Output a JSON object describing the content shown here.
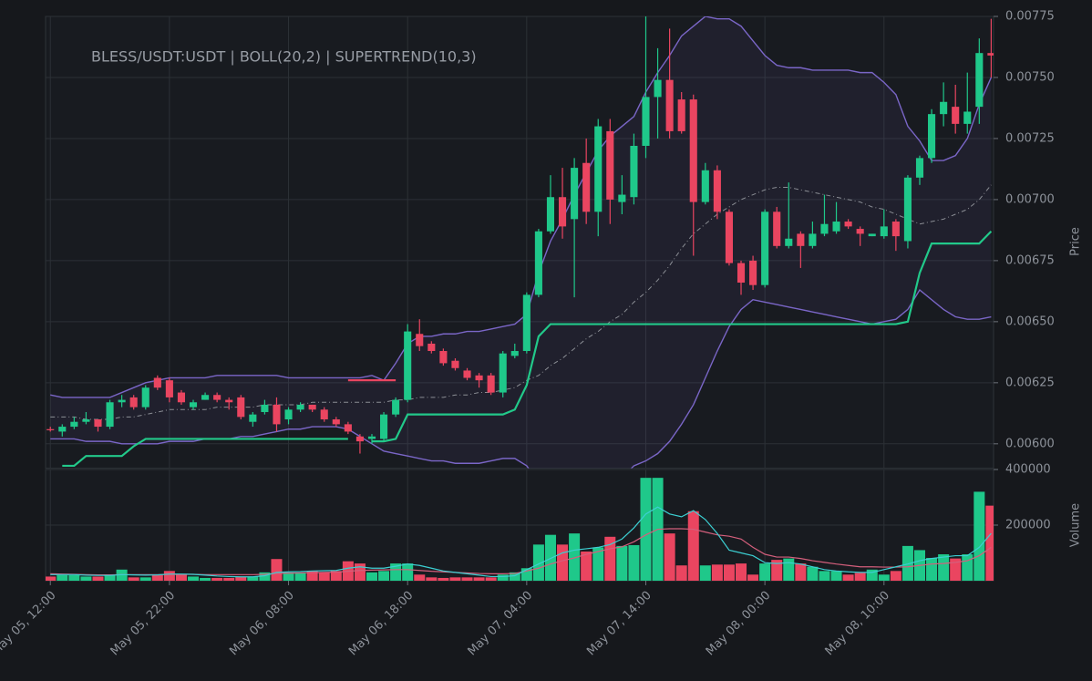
{
  "chart_data": [
    {
      "type": "candlestick",
      "title": "BLESS/USDT:USDT | BOLL(20,2) | SUPERTREND(10,3)",
      "ylabel": "Price",
      "up_color": "#1fc88a",
      "down_color": "#ea4560",
      "open": [
        0.00606,
        0.00605,
        0.00607,
        0.00609,
        0.0061,
        0.00607,
        0.00617,
        0.00619,
        0.00615,
        0.00627,
        0.00626,
        0.00621,
        0.00615,
        0.00618,
        0.0062,
        0.00618,
        0.00619,
        0.00609,
        0.00613,
        0.00616,
        0.0061,
        0.00614,
        0.00616,
        0.00614,
        0.0061,
        0.00608,
        0.00603,
        0.00602,
        0.00602,
        0.00612,
        0.00618,
        0.00645,
        0.00641,
        0.00638,
        0.00634,
        0.0063,
        0.00628,
        0.00628,
        0.00621,
        0.00636,
        0.00638,
        0.00661,
        0.00687,
        0.00701,
        0.00692,
        0.00715,
        0.00695,
        0.00728,
        0.00699,
        0.00701,
        0.00722,
        0.00742,
        0.00749,
        0.00741,
        0.00741,
        0.00699,
        0.00712,
        0.00695,
        0.00674,
        0.00675,
        0.00665,
        0.00695,
        0.00681,
        0.00686,
        0.00681,
        0.00686,
        0.00687,
        0.00691,
        0.00688,
        0.00685,
        0.00685,
        0.00691,
        0.00683,
        0.00709,
        0.00717,
        0.00735,
        0.00738,
        0.00731,
        0.00738,
        0.0076
      ],
      "high": [
        0.00607,
        0.00608,
        0.00611,
        0.00613,
        0.0061,
        0.00618,
        0.0062,
        0.0062,
        0.00624,
        0.00628,
        0.00627,
        0.00622,
        0.00618,
        0.00621,
        0.00621,
        0.00619,
        0.0062,
        0.00613,
        0.00618,
        0.00619,
        0.00615,
        0.00617,
        0.00616,
        0.00615,
        0.00611,
        0.00609,
        0.00604,
        0.00604,
        0.00613,
        0.00619,
        0.00649,
        0.00651,
        0.00642,
        0.00639,
        0.00635,
        0.00631,
        0.00629,
        0.00629,
        0.00638,
        0.00641,
        0.00662,
        0.00688,
        0.0071,
        0.00713,
        0.00717,
        0.00725,
        0.00733,
        0.00733,
        0.0071,
        0.00727,
        0.00775,
        0.00762,
        0.0077,
        0.00744,
        0.00743,
        0.00715,
        0.00714,
        0.00696,
        0.00675,
        0.00677,
        0.00696,
        0.00697,
        0.00707,
        0.00687,
        0.00691,
        0.00702,
        0.00699,
        0.00692,
        0.00689,
        0.00686,
        0.00696,
        0.00692,
        0.0071,
        0.00718,
        0.00737,
        0.00748,
        0.00747,
        0.00752,
        0.00766,
        0.00774
      ],
      "low": [
        0.00605,
        0.00603,
        0.00606,
        0.00608,
        0.00605,
        0.00606,
        0.00615,
        0.00614,
        0.00614,
        0.00622,
        0.00617,
        0.00616,
        0.00614,
        0.00618,
        0.00617,
        0.00614,
        0.0061,
        0.00607,
        0.00612,
        0.00605,
        0.00608,
        0.00613,
        0.00613,
        0.00609,
        0.00607,
        0.00604,
        0.00596,
        0.006,
        0.00601,
        0.00611,
        0.00617,
        0.00638,
        0.00637,
        0.00632,
        0.0063,
        0.00626,
        0.00623,
        0.0062,
        0.00619,
        0.00635,
        0.00637,
        0.0066,
        0.00686,
        0.00684,
        0.0066,
        0.0069,
        0.00685,
        0.0069,
        0.00694,
        0.00698,
        0.00717,
        0.00725,
        0.00725,
        0.00727,
        0.00677,
        0.00698,
        0.00692,
        0.00673,
        0.00661,
        0.00663,
        0.00664,
        0.0068,
        0.0068,
        0.00672,
        0.0068,
        0.00685,
        0.00686,
        0.00688,
        0.00681,
        0.00685,
        0.00684,
        0.00679,
        0.0068,
        0.00706,
        0.00715,
        0.0073,
        0.00727,
        0.00727,
        0.00731,
        0.0075
      ],
      "close": [
        0.00606,
        0.00607,
        0.00609,
        0.0061,
        0.00607,
        0.00617,
        0.00618,
        0.00615,
        0.00623,
        0.00623,
        0.00619,
        0.00617,
        0.00617,
        0.0062,
        0.00618,
        0.00617,
        0.00611,
        0.00612,
        0.00616,
        0.00608,
        0.00614,
        0.00616,
        0.00614,
        0.0061,
        0.00608,
        0.00605,
        0.00601,
        0.00603,
        0.00612,
        0.00618,
        0.00646,
        0.0064,
        0.00638,
        0.00633,
        0.00631,
        0.00627,
        0.00626,
        0.00621,
        0.00637,
        0.00638,
        0.00661,
        0.00687,
        0.00701,
        0.00689,
        0.00713,
        0.00695,
        0.0073,
        0.007,
        0.00702,
        0.00722,
        0.00742,
        0.00749,
        0.00728,
        0.00728,
        0.00699,
        0.00712,
        0.00695,
        0.00674,
        0.00666,
        0.00665,
        0.00695,
        0.00681,
        0.00684,
        0.00681,
        0.00686,
        0.0069,
        0.00691,
        0.00689,
        0.00686,
        0.00686,
        0.00689,
        0.00685,
        0.00709,
        0.00717,
        0.00735,
        0.0074,
        0.00731,
        0.00736,
        0.0076,
        0.00759
      ],
      "boll_upper": {
        "color": "#7a66c7",
        "values": [
          0.0062,
          0.00619,
          0.00619,
          0.00619,
          0.00619,
          0.00619,
          0.00621,
          0.00623,
          0.00625,
          0.00626,
          0.00627,
          0.00627,
          0.00627,
          0.00627,
          0.00628,
          0.00628,
          0.00628,
          0.00628,
          0.00628,
          0.00628,
          0.00627,
          0.00627,
          0.00627,
          0.00627,
          0.00627,
          0.00627,
          0.00627,
          0.00628,
          0.00626,
          0.00633,
          0.00641,
          0.00644,
          0.00644,
          0.00645,
          0.00645,
          0.00646,
          0.00646,
          0.00647,
          0.00648,
          0.00649,
          0.00653,
          0.0067,
          0.00683,
          0.00692,
          0.00702,
          0.00711,
          0.0072,
          0.00726,
          0.0073,
          0.00734,
          0.00744,
          0.00752,
          0.00759,
          0.00767,
          0.00771,
          0.00775,
          0.00774,
          0.00774,
          0.00771,
          0.00765,
          0.00759,
          0.00755,
          0.00754,
          0.00754,
          0.00753,
          0.00753,
          0.00753,
          0.00753,
          0.00752,
          0.00752,
          0.00748,
          0.00743,
          0.0073,
          0.00724,
          0.00716,
          0.00716,
          0.00718,
          0.00725,
          0.00739,
          0.0075
        ]
      },
      "boll_mid": {
        "color": "#8a8d94",
        "values": [
          0.00611,
          0.00611,
          0.00611,
          0.0061,
          0.0061,
          0.0061,
          0.00611,
          0.00611,
          0.00612,
          0.00613,
          0.00614,
          0.00614,
          0.00614,
          0.00614,
          0.00615,
          0.00615,
          0.00615,
          0.00615,
          0.00616,
          0.00616,
          0.00616,
          0.00616,
          0.00617,
          0.00617,
          0.00617,
          0.00617,
          0.00617,
          0.00617,
          0.00617,
          0.00618,
          0.00618,
          0.00619,
          0.00619,
          0.00619,
          0.0062,
          0.0062,
          0.00621,
          0.00621,
          0.00622,
          0.00623,
          0.00626,
          0.00628,
          0.00632,
          0.00635,
          0.00639,
          0.00643,
          0.00646,
          0.0065,
          0.00653,
          0.00658,
          0.00662,
          0.00667,
          0.00673,
          0.0068,
          0.00686,
          0.0069,
          0.00694,
          0.00697,
          0.007,
          0.00702,
          0.00704,
          0.00705,
          0.00705,
          0.00704,
          0.00703,
          0.00702,
          0.00701,
          0.007,
          0.00699,
          0.00697,
          0.00696,
          0.00694,
          0.00692,
          0.0069,
          0.00691,
          0.00692,
          0.00694,
          0.00696,
          0.007,
          0.00706
        ]
      },
      "boll_lower": {
        "color": "#7a66c7",
        "values": [
          0.00602,
          0.00602,
          0.00602,
          0.00601,
          0.00601,
          0.00601,
          0.006,
          0.006,
          0.006,
          0.006,
          0.00601,
          0.00601,
          0.00601,
          0.00602,
          0.00602,
          0.00602,
          0.00603,
          0.00603,
          0.00604,
          0.00605,
          0.00606,
          0.00606,
          0.00607,
          0.00607,
          0.00607,
          0.00606,
          0.00603,
          0.006,
          0.00597,
          0.00596,
          0.00595,
          0.00594,
          0.00593,
          0.00593,
          0.00592,
          0.00592,
          0.00592,
          0.00593,
          0.00594,
          0.00594,
          0.00591,
          0.00584,
          0.00579,
          0.00574,
          0.00572,
          0.00572,
          0.00575,
          0.0058,
          0.00586,
          0.00591,
          0.00593,
          0.00596,
          0.00601,
          0.00608,
          0.00616,
          0.00627,
          0.00638,
          0.00648,
          0.00655,
          0.00659,
          0.00658,
          0.00657,
          0.00656,
          0.00655,
          0.00654,
          0.00653,
          0.00652,
          0.00651,
          0.0065,
          0.00649,
          0.0065,
          0.00651,
          0.00655,
          0.00663,
          0.00659,
          0.00655,
          0.00652,
          0.00651,
          0.00651,
          0.00652
        ]
      },
      "supertrend_up": {
        "color": "#22c98a",
        "values": [
          null,
          0.00591,
          0.00591,
          0.00595,
          0.00595,
          0.00595,
          0.00595,
          0.00599,
          0.00602,
          0.00602,
          0.00602,
          0.00602,
          0.00602,
          0.00602,
          0.00602,
          0.00602,
          0.00602,
          0.00602,
          0.00602,
          0.00602,
          0.00602,
          0.00602,
          0.00602,
          0.00602,
          0.00602,
          0.00602,
          null,
          0.00601,
          0.00601,
          0.00602,
          0.00612,
          0.00612,
          0.00612,
          0.00612,
          0.00612,
          0.00612,
          0.00612,
          0.00612,
          0.00612,
          0.00614,
          0.00624,
          0.00644,
          0.00649,
          0.00649,
          0.00649,
          0.00649,
          0.00649,
          0.00649,
          0.00649,
          0.00649,
          0.00649,
          0.00649,
          0.00649,
          0.00649,
          0.00649,
          0.00649,
          0.00649,
          0.00649,
          0.00649,
          0.00649,
          0.00649,
          0.00649,
          0.00649,
          0.00649,
          0.00649,
          0.00649,
          0.00649,
          0.00649,
          0.00649,
          0.00649,
          0.00649,
          0.00649,
          0.0065,
          0.0067,
          0.00682,
          0.00682,
          0.00682,
          0.00682,
          0.00682,
          0.00687
        ]
      },
      "supertrend_down": {
        "color": "#ea4560",
        "values": [
          null,
          null,
          null,
          null,
          null,
          null,
          null,
          null,
          null,
          null,
          null,
          null,
          null,
          null,
          null,
          null,
          null,
          null,
          null,
          null,
          null,
          null,
          null,
          null,
          null,
          0.00626,
          0.00626,
          0.00626,
          0.00626,
          0.00626,
          null,
          null,
          null,
          null,
          null,
          null,
          null,
          null,
          null,
          null,
          null,
          null,
          null,
          null,
          null,
          null,
          null,
          null,
          null,
          null,
          null,
          null,
          null,
          null,
          null,
          null,
          null,
          null,
          null,
          null,
          null,
          null,
          null,
          null,
          null,
          null,
          null,
          null,
          null,
          null,
          null,
          null,
          null,
          null,
          null,
          null,
          null,
          null,
          null,
          null
        ]
      },
      "xlim": [
        -0.4,
        79.2
      ],
      "ylim": [
        0.0059,
        0.00775
      ],
      "yticks": [
        {
          "value": 0.006,
          "label": "0.00600"
        },
        0.00625,
        {
          "value": 0.0065,
          "label": "0.00650"
        },
        0.00675,
        {
          "value": 0.007,
          "label": "0.00700"
        },
        0.00725,
        {
          "value": 0.0075,
          "label": "0.00750"
        },
        0.00775
      ],
      "grid": true
    },
    {
      "type": "bar",
      "ylabel": "Volume",
      "values": [
        15000,
        20000,
        20000,
        15000,
        15000,
        20000,
        40000,
        12000,
        12000,
        22000,
        35000,
        22000,
        15000,
        10000,
        10000,
        10000,
        15000,
        15000,
        30000,
        78000,
        30000,
        30000,
        35000,
        30000,
        35000,
        70000,
        62000,
        30000,
        35000,
        62000,
        62000,
        22000,
        12000,
        10000,
        12000,
        12000,
        12000,
        12000,
        22000,
        30000,
        45000,
        130000,
        165000,
        130000,
        170000,
        105000,
        120000,
        158000,
        125000,
        128000,
        370000,
        370000,
        170000,
        55000,
        250000,
        55000,
        58000,
        58000,
        62000,
        22000,
        62000,
        75000,
        80000,
        62000,
        50000,
        35000,
        35000,
        22000,
        28000,
        40000,
        22000,
        35000,
        125000,
        110000,
        82000,
        95000,
        80000,
        95000,
        320000,
        270000
      ],
      "ma_fast": {
        "color": "#3ccfd2",
        "values": [
          22000,
          22000,
          22000,
          20000,
          19000,
          19000,
          22000,
          21000,
          20000,
          21000,
          24000,
          24000,
          23000,
          20000,
          17000,
          15000,
          14000,
          14000,
          18000,
          30000,
          32000,
          33000,
          35000,
          36000,
          37000,
          45000,
          50000,
          45000,
          45000,
          52000,
          60000,
          55000,
          45000,
          35000,
          30000,
          25000,
          20000,
          15000,
          15000,
          18000,
          40000,
          60000,
          80000,
          100000,
          110000,
          115000,
          120000,
          130000,
          150000,
          190000,
          240000,
          265000,
          240000,
          230000,
          252000,
          220000,
          170000,
          110000,
          100000,
          90000,
          65000,
          62000,
          65000,
          60000,
          50000,
          40000,
          35000,
          32000,
          30000,
          30000,
          40000,
          50000,
          60000,
          72000,
          80000,
          85000,
          90000,
          90000,
          120000,
          170000
        ]
      },
      "ma_slow": {
        "color": "#d45f7c",
        "values": [
          25000,
          24000,
          23000,
          22000,
          21000,
          21000,
          22000,
          22000,
          22000,
          22000,
          23000,
          23000,
          23000,
          22000,
          22000,
          22000,
          22000,
          22000,
          23000,
          26000,
          27000,
          28000,
          29000,
          30000,
          31000,
          34000,
          37000,
          38000,
          39000,
          40000,
          40000,
          37000,
          34000,
          32000,
          30000,
          28000,
          26000,
          25000,
          25000,
          26000,
          35000,
          45000,
          60000,
          72000,
          82000,
          95000,
          105000,
          115000,
          122000,
          140000,
          165000,
          185000,
          187000,
          187000,
          185000,
          175000,
          165000,
          160000,
          150000,
          120000,
          95000,
          85000,
          85000,
          80000,
          72000,
          66000,
          60000,
          55000,
          50000,
          50000,
          49000,
          49000,
          50000,
          55000,
          60000,
          62000,
          66000,
          72000,
          90000,
          120000
        ]
      },
      "xlim": [
        -0.4,
        79.2
      ],
      "xticks": [
        {
          "value": 0,
          "label": "May 05, 12:00"
        },
        {
          "value": 10,
          "label": "May 05, 22:00"
        },
        {
          "value": 20,
          "label": "May 06, 08:00"
        },
        {
          "value": 30,
          "label": "May 06, 18:00"
        },
        {
          "value": 40,
          "label": "May 07, 04:00"
        },
        {
          "value": 50,
          "label": "May 07, 14:00"
        },
        {
          "value": 60,
          "label": "May 08, 00:00"
        },
        {
          "value": 70,
          "label": "May 08, 10:00"
        }
      ],
      "ylim": [
        0,
        400000
      ],
      "yticks": [
        200000,
        400000
      ],
      "grid": true
    }
  ]
}
